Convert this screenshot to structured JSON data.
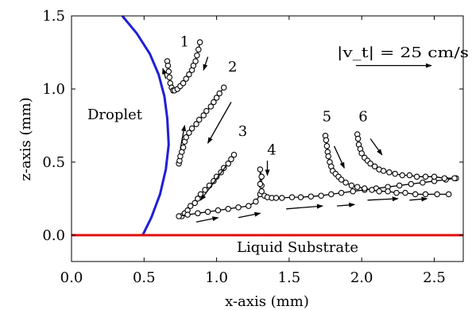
{
  "chart_data": {
    "type": "scatter",
    "title": "",
    "xlabel": "x-axis (mm)",
    "ylabel": "z-axis (mm)",
    "xlim": [
      0.0,
      2.7
    ],
    "ylim": [
      -0.18,
      1.5
    ],
    "xticks": [
      "0.0",
      "0.5",
      "1.0",
      "1.5",
      "2.0",
      "2.5"
    ],
    "yticks": [
      "0.0",
      "0.5",
      "1.0",
      "1.5"
    ],
    "xtick_values": [
      0.0,
      0.5,
      1.0,
      1.5,
      2.0,
      2.5
    ],
    "ytick_values": [
      0.0,
      0.5,
      1.0,
      1.5
    ],
    "grid": false,
    "colors": {
      "droplet": "#1f1fd8",
      "substrate": "#e01010",
      "markers": "#000000"
    },
    "annotations": {
      "droplet": "Droplet",
      "substrate": "Liquid Substrate",
      "velocity_scale": "|v_t| = 25 cm/s"
    },
    "droplet_outline": {
      "x": [
        0.35,
        0.45,
        0.54,
        0.6,
        0.64,
        0.66,
        0.67,
        0.65,
        0.61,
        0.55,
        0.49
      ],
      "y": [
        1.5,
        1.38,
        1.24,
        1.1,
        0.95,
        0.8,
        0.62,
        0.45,
        0.28,
        0.12,
        0.0
      ]
    },
    "substrate_line": {
      "x": [
        0.0,
        2.7
      ],
      "y": [
        0.0,
        0.0
      ]
    },
    "series": [
      {
        "label": "1",
        "x": [
          0.66,
          0.665,
          0.67,
          0.675,
          0.68,
          0.69,
          0.7,
          0.71,
          0.73,
          0.75,
          0.77,
          0.79,
          0.81,
          0.83,
          0.84,
          0.855,
          0.865,
          0.875,
          0.885
        ],
        "y": [
          1.19,
          1.16,
          1.12,
          1.08,
          1.04,
          1.01,
          0.99,
          0.99,
          1.0,
          1.02,
          1.04,
          1.07,
          1.1,
          1.13,
          1.16,
          1.19,
          1.23,
          1.27,
          1.32
        ]
      },
      {
        "label": "2",
        "x": [
          0.74,
          0.745,
          0.75,
          0.76,
          0.77,
          0.78,
          0.79,
          0.81,
          0.83,
          0.86,
          0.88,
          0.91,
          0.93,
          0.96,
          0.98,
          1.0,
          1.02,
          1.05
        ],
        "y": [
          0.49,
          0.51,
          0.54,
          0.57,
          0.6,
          0.64,
          0.67,
          0.7,
          0.73,
          0.76,
          0.79,
          0.82,
          0.85,
          0.88,
          0.91,
          0.94,
          0.97,
          1.01
        ]
      },
      {
        "label": "3",
        "x": [
          0.76,
          0.78,
          0.8,
          0.82,
          0.85,
          0.87,
          0.89,
          0.92,
          0.95,
          0.98,
          1.0,
          1.03,
          1.05,
          1.08,
          1.1,
          1.12
        ],
        "y": [
          0.13,
          0.15,
          0.17,
          0.2,
          0.22,
          0.25,
          0.28,
          0.31,
          0.34,
          0.37,
          0.4,
          0.43,
          0.46,
          0.49,
          0.52,
          0.55
        ]
      },
      {
        "label": "4",
        "x": [
          0.74,
          0.8,
          0.87,
          0.94,
          1.01,
          1.08,
          1.15,
          1.22,
          1.27,
          1.3,
          1.31,
          1.31,
          1.3,
          1.3,
          1.31,
          1.33,
          1.35,
          1.38,
          1.41,
          1.45,
          1.52,
          1.58,
          1.65,
          1.72,
          1.79,
          1.86,
          1.94,
          2.02,
          2.1,
          2.18,
          2.26,
          2.34,
          2.42,
          2.5,
          2.58,
          2.65
        ],
        "y": [
          0.13,
          0.14,
          0.15,
          0.16,
          0.17,
          0.18,
          0.19,
          0.2,
          0.23,
          0.28,
          0.34,
          0.4,
          0.45,
          0.35,
          0.3,
          0.27,
          0.26,
          0.255,
          0.255,
          0.255,
          0.26,
          0.26,
          0.265,
          0.27,
          0.28,
          0.29,
          0.3,
          0.31,
          0.32,
          0.33,
          0.34,
          0.35,
          0.36,
          0.37,
          0.38,
          0.39
        ]
      },
      {
        "label": "5",
        "x": [
          1.75,
          1.755,
          1.76,
          1.765,
          1.77,
          1.78,
          1.79,
          1.8,
          1.82,
          1.84,
          1.86,
          1.89,
          1.93,
          1.97,
          2.02,
          2.07,
          2.12,
          2.18,
          2.24,
          2.3,
          2.37,
          2.44,
          2.52,
          2.6
        ],
        "y": [
          0.68,
          0.65,
          0.61,
          0.57,
          0.54,
          0.5,
          0.47,
          0.44,
          0.42,
          0.4,
          0.38,
          0.36,
          0.34,
          0.33,
          0.32,
          0.31,
          0.3,
          0.3,
          0.29,
          0.29,
          0.28,
          0.28,
          0.28,
          0.28
        ]
      },
      {
        "label": "6",
        "x": [
          1.97,
          1.975,
          1.98,
          1.99,
          2.0,
          2.02,
          2.04,
          2.06,
          2.09,
          2.12,
          2.15,
          2.19,
          2.23,
          2.28,
          2.33,
          2.38,
          2.44,
          2.5,
          2.57,
          2.64
        ],
        "y": [
          0.69,
          0.66,
          0.62,
          0.59,
          0.56,
          0.53,
          0.51,
          0.49,
          0.47,
          0.45,
          0.44,
          0.43,
          0.42,
          0.41,
          0.41,
          0.4,
          0.4,
          0.4,
          0.39,
          0.39
        ]
      }
    ],
    "series_label_positions": [
      {
        "label": "1",
        "x": 0.78,
        "y": 1.29
      },
      {
        "label": "2",
        "x": 1.11,
        "y": 1.12
      },
      {
        "label": "3",
        "x": 1.18,
        "y": 0.68
      },
      {
        "label": "4",
        "x": 1.38,
        "y": 0.55
      },
      {
        "label": "5",
        "x": 1.76,
        "y": 0.78
      },
      {
        "label": "6",
        "x": 2.01,
        "y": 0.78
      }
    ],
    "velocity_arrows": [
      {
        "x1": 0.94,
        "y1": 1.22,
        "x2": 0.91,
        "y2": 1.13
      },
      {
        "x1": 0.65,
        "y1": 1.07,
        "x2": 0.63,
        "y2": 1.14
      },
      {
        "x1": 1.1,
        "y1": 0.91,
        "x2": 0.94,
        "y2": 0.63
      },
      {
        "x1": 0.75,
        "y1": 0.59,
        "x2": 0.78,
        "y2": 0.75
      },
      {
        "x1": 1.07,
        "y1": 0.48,
        "x2": 0.89,
        "y2": 0.24
      },
      {
        "x1": 1.35,
        "y1": 0.51,
        "x2": 1.35,
        "y2": 0.41
      },
      {
        "x1": 1.81,
        "y1": 0.61,
        "x2": 1.88,
        "y2": 0.46
      },
      {
        "x1": 2.06,
        "y1": 0.66,
        "x2": 2.14,
        "y2": 0.55
      },
      {
        "x1": 0.86,
        "y1": 0.09,
        "x2": 1.01,
        "y2": 0.12
      },
      {
        "x1": 1.15,
        "y1": 0.12,
        "x2": 1.3,
        "y2": 0.15
      },
      {
        "x1": 1.48,
        "y1": 0.18,
        "x2": 1.73,
        "y2": 0.2
      },
      {
        "x1": 1.83,
        "y1": 0.2,
        "x2": 1.95,
        "y2": 0.21
      },
      {
        "x1": 2.04,
        "y1": 0.24,
        "x2": 2.25,
        "y2": 0.25
      },
      {
        "x1": 2.33,
        "y1": 0.24,
        "x2": 2.45,
        "y2": 0.25
      },
      {
        "x1": 1.96,
        "y1": 1.16,
        "x2": 2.48,
        "y2": 1.16
      }
    ]
  }
}
